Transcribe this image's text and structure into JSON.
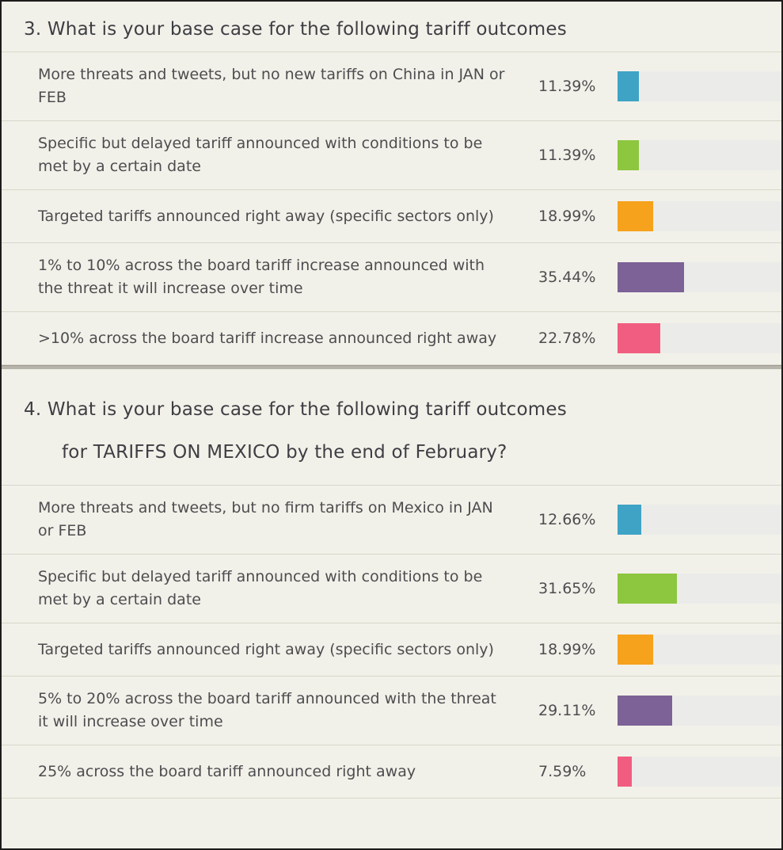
{
  "page": {
    "background": "#f2f1e9",
    "border_color": "#1c1c1c",
    "text_color": "#4d4d50",
    "track_color": "#ebebe9",
    "divider_color": "#b7b5ab"
  },
  "questions": [
    {
      "title": "3. What is your base case for the following tariff outcomes",
      "rows": [
        {
          "label": "More threats and tweets, but no new tariffs on China in JAN or FEB",
          "percent": "11.39%",
          "value": 11.39,
          "color": "#3fa3c5"
        },
        {
          "label": "Specific but delayed tariff announced with conditions to be met by a certain date",
          "percent": "11.39%",
          "value": 11.39,
          "color": "#8dc63f"
        },
        {
          "label": "Targeted tariffs announced right away (specific sectors only)",
          "percent": "18.99%",
          "value": 18.99,
          "color": "#f6a21d"
        },
        {
          "label": "1% to 10% across the board tariff increase announced with the threat it will increase over time",
          "percent": "35.44%",
          "value": 35.44,
          "color": "#7c6297"
        },
        {
          "label": ">10% across the board tariff increase announced right away",
          "percent": "22.78%",
          "value": 22.78,
          "color": "#f15d80"
        }
      ]
    },
    {
      "title": "4. What is your base case for the following tariff outcomes",
      "subtitle": "for TARIFFS ON MEXICO by the end of February?",
      "rows": [
        {
          "label": "More threats and tweets, but no firm tariffs on Mexico in JAN or FEB",
          "percent": "12.66%",
          "value": 12.66,
          "color": "#3fa3c5"
        },
        {
          "label": "Specific but delayed tariff announced with conditions to be met by a certain date",
          "percent": "31.65%",
          "value": 31.65,
          "color": "#8dc63f"
        },
        {
          "label": "Targeted tariffs announced right away (specific sectors only)",
          "percent": "18.99%",
          "value": 18.99,
          "color": "#f6a21d"
        },
        {
          "label": "5% to 20% across the board tariff announced with the threat it will increase over time",
          "percent": "29.11%",
          "value": 29.11,
          "color": "#7c6297"
        },
        {
          "label": "25% across the board tariff announced right away",
          "percent": "7.59%",
          "value": 7.59,
          "color": "#f15d80"
        }
      ]
    }
  ],
  "chart_data": [
    {
      "type": "bar",
      "orientation": "horizontal",
      "title": "3. What is your base case for the following tariff outcomes",
      "categories": [
        "More threats and tweets, but no new tariffs on China in JAN or FEB",
        "Specific but delayed tariff announced with conditions to be met by a certain date",
        "Targeted tariffs announced right away (specific sectors only)",
        "1% to 10% across the board tariff increase announced with the threat it will increase over time",
        ">10% across the board tariff increase announced right away"
      ],
      "values": [
        11.39,
        11.39,
        18.99,
        35.44,
        22.78
      ],
      "value_labels": [
        "11.39%",
        "11.39%",
        "18.99%",
        "35.44%",
        "22.78%"
      ],
      "unit": "percent",
      "xlim": [
        0,
        100
      ],
      "grid": false,
      "legend": "none",
      "bar_colors": [
        "#3fa3c5",
        "#8dc63f",
        "#f6a21d",
        "#7c6297",
        "#f15d80"
      ]
    },
    {
      "type": "bar",
      "orientation": "horizontal",
      "title": "4. What is your base case for the following tariff outcomes for TARIFFS ON MEXICO by the end of February?",
      "categories": [
        "More threats and tweets, but no firm tariffs on Mexico in JAN or FEB",
        "Specific but delayed tariff announced with conditions to be met by a certain date",
        "Targeted tariffs announced right away (specific sectors only)",
        "5% to 20% across the board tariff announced with the threat it will increase over time",
        "25% across the board tariff announced right away"
      ],
      "values": [
        12.66,
        31.65,
        18.99,
        29.11,
        7.59
      ],
      "value_labels": [
        "12.66%",
        "31.65%",
        "18.99%",
        "29.11%",
        "7.59%"
      ],
      "unit": "percent",
      "xlim": [
        0,
        100
      ],
      "grid": false,
      "legend": "none",
      "bar_colors": [
        "#3fa3c5",
        "#8dc63f",
        "#f6a21d",
        "#7c6297",
        "#f15d80"
      ]
    }
  ]
}
